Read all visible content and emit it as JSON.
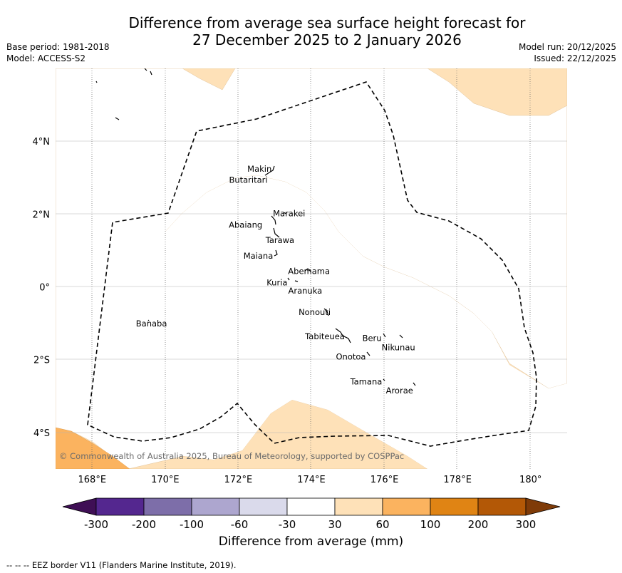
{
  "header": {
    "title_line1": "Difference from average sea surface height forecast for",
    "title_line2": "27 December 2025 to 2 January 2026",
    "base_period": "Base period: 1981-2018",
    "model": "Model: ACCESS-S2",
    "model_run": "Model run: 20/12/2025",
    "issued": "Issued: 22/12/2025"
  },
  "map": {
    "lat_range": [
      -5,
      6
    ],
    "lon_range": [
      167,
      181
    ],
    "lat_ticks": [
      {
        "value": 4,
        "label": "4°N"
      },
      {
        "value": 2,
        "label": "2°N"
      },
      {
        "value": 0,
        "label": "0°"
      },
      {
        "value": -2,
        "label": "2°S"
      },
      {
        "value": -4,
        "label": "4°S"
      }
    ],
    "lon_ticks": [
      {
        "value": 168,
        "label": "168°E"
      },
      {
        "value": 170,
        "label": "170°E"
      },
      {
        "value": 172,
        "label": "172°E"
      },
      {
        "value": 174,
        "label": "174°E"
      },
      {
        "value": 176,
        "label": "176°E"
      },
      {
        "value": 178,
        "label": "178°E"
      },
      {
        "value": 180,
        "label": "180°"
      }
    ],
    "islands": [
      {
        "name": "Makin",
        "lon": 172.95,
        "lat": 3.2
      },
      {
        "name": "Butaritari",
        "lon": 172.8,
        "lat": 3.05
      },
      {
        "name": "Marakei",
        "lon": 173.3,
        "lat": 2.0
      },
      {
        "name": "Abaiang",
        "lon": 172.95,
        "lat": 1.8
      },
      {
        "name": "Tarawa",
        "lon": 173.0,
        "lat": 1.4
      },
      {
        "name": "Maiana",
        "lon": 173.0,
        "lat": 0.95
      },
      {
        "name": "Abemama",
        "lon": 173.85,
        "lat": 0.45
      },
      {
        "name": "Kuria",
        "lon": 173.4,
        "lat": 0.22
      },
      {
        "name": "Aranuka",
        "lon": 173.6,
        "lat": 0.15
      },
      {
        "name": "Banaba",
        "lon": 169.55,
        "lat": -0.87
      },
      {
        "name": "Nonouti",
        "lon": 174.45,
        "lat": -0.65
      },
      {
        "name": "Tabiteuea",
        "lon": 174.9,
        "lat": -1.3
      },
      {
        "name": "Beru",
        "lon": 176.0,
        "lat": -1.33
      },
      {
        "name": "Nikunau",
        "lon": 176.45,
        "lat": -1.37
      },
      {
        "name": "Onotoa",
        "lon": 175.55,
        "lat": -1.8
      },
      {
        "name": "Tamana",
        "lon": 176.0,
        "lat": -2.5
      },
      {
        "name": "Arorae",
        "lon": 176.8,
        "lat": -2.65
      }
    ],
    "copyright": "© Commonwealth of Australia 2025, Bureau of Meteorology, supported by COSPPac"
  },
  "colorbar": {
    "ticks": [
      "-300",
      "-200",
      "-100",
      "-60",
      "-30",
      "30",
      "60",
      "100",
      "200",
      "300"
    ],
    "colors": [
      "#3f0f55",
      "#54278f",
      "#7d6ea9",
      "#ada6cf",
      "#dadaeb",
      "#ffffff",
      "#fee1b8",
      "#fbb35f",
      "#e08414",
      "#b35806",
      "#7f3b08"
    ],
    "label": "Difference from average (mm)"
  },
  "footer": {
    "eez_legend": "--  --  -- EEZ border V11 (Flanders Marine Institute, 2019)."
  }
}
